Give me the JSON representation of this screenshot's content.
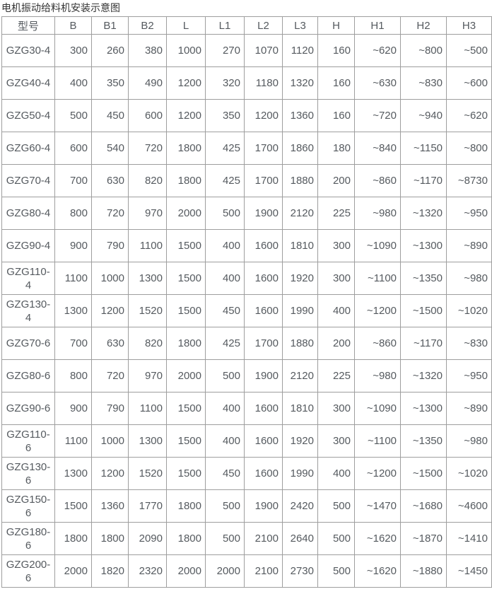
{
  "page": {
    "title": "电机振动给料机安装示意图"
  },
  "colors": {
    "text": "#555a5f",
    "title_text": "#333333",
    "border": "#9e9e9e",
    "background": "#ffffff"
  },
  "table": {
    "columns": [
      "型号",
      "B",
      "B1",
      "B2",
      "L",
      "L1",
      "L2",
      "L3",
      "H",
      "H1",
      "H2",
      "H3"
    ],
    "rows": [
      [
        "GZG30-4",
        "300",
        "260",
        "380",
        "1000",
        "270",
        "1070",
        "1120",
        "160",
        "~620",
        "~800",
        "~500"
      ],
      [
        "GZG40-4",
        "400",
        "350",
        "490",
        "1200",
        "320",
        "1180",
        "1320",
        "160",
        "~630",
        "~830",
        "~600"
      ],
      [
        "GZG50-4",
        "500",
        "450",
        "600",
        "1200",
        "350",
        "1200",
        "1360",
        "160",
        "~720",
        "~940",
        "~620"
      ],
      [
        "GZG60-4",
        "600",
        "540",
        "720",
        "1800",
        "425",
        "1700",
        "1860",
        "180",
        "~840",
        "~1150",
        "~800"
      ],
      [
        "GZG70-4",
        "700",
        "630",
        "820",
        "1800",
        "425",
        "1700",
        "1880",
        "200",
        "~860",
        "~1170",
        "~8730"
      ],
      [
        "GZG80-4",
        "800",
        "720",
        "970",
        "2000",
        "500",
        "1900",
        "2120",
        "225",
        "~980",
        "~1320",
        "~950"
      ],
      [
        "GZG90-4",
        "900",
        "790",
        "1100",
        "1500",
        "400",
        "1600",
        "1810",
        "300",
        "~1090",
        "~1300",
        "~890"
      ],
      [
        "GZG110-4",
        "1100",
        "1000",
        "1300",
        "1500",
        "400",
        "1600",
        "1920",
        "300",
        "~1100",
        "~1350",
        "~980"
      ],
      [
        "GZG130-4",
        "1300",
        "1200",
        "1520",
        "1500",
        "450",
        "1600",
        "1990",
        "400",
        "~1200",
        "~1500",
        "~1020"
      ],
      [
        "GZG70-6",
        "700",
        "630",
        "820",
        "1800",
        "425",
        "1700",
        "1880",
        "200",
        "~860",
        "~1170",
        "~830"
      ],
      [
        "GZG80-6",
        "800",
        "720",
        "970",
        "2000",
        "500",
        "1900",
        "2120",
        "225",
        "~980",
        "~1320",
        "~950"
      ],
      [
        "GZG90-6",
        "900",
        "790",
        "1100",
        "1500",
        "400",
        "1600",
        "1810",
        "300",
        "~1090",
        "~1300",
        "~890"
      ],
      [
        "GZG110-6",
        "1100",
        "1000",
        "1300",
        "1500",
        "400",
        "1600",
        "1920",
        "300",
        "~1100",
        "~1350",
        "~980"
      ],
      [
        "GZG130-6",
        "1300",
        "1200",
        "1520",
        "1500",
        "450",
        "1600",
        "1990",
        "400",
        "~1200",
        "~1500",
        "~1020"
      ],
      [
        "GZG150-6",
        "1500",
        "1360",
        "1770",
        "1800",
        "500",
        "1900",
        "2420",
        "500",
        "~1470",
        "~1680",
        "~4600"
      ],
      [
        "GZG180-6",
        "1800",
        "1800",
        "2090",
        "1800",
        "500",
        "2100",
        "2640",
        "500",
        "~1620",
        "~1870",
        "~1410"
      ],
      [
        "GZG200-6",
        "2000",
        "1820",
        "2320",
        "2000",
        "2000",
        "2100",
        "2730",
        "500",
        "~1620",
        "~1880",
        "~1450"
      ]
    ]
  }
}
